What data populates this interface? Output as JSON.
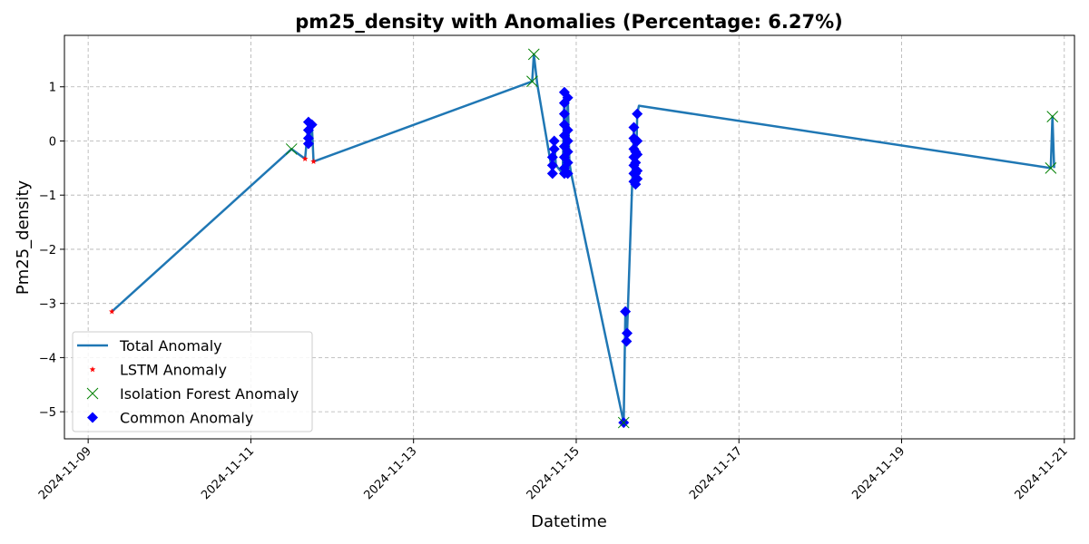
{
  "chart_data": {
    "type": "line",
    "title": "pm25_density with Anomalies (Percentage: 6.27%)",
    "xlabel": "Datetime",
    "ylabel": "Pm25_density",
    "xlim": [
      "2024-11-08T17:00",
      "2024-11-21T03:00"
    ],
    "ylim": [
      -5.5,
      1.95
    ],
    "x_ticks": [
      "2024-11-09",
      "2024-11-11",
      "2024-11-13",
      "2024-11-15",
      "2024-11-17",
      "2024-11-19",
      "2024-11-21"
    ],
    "y_ticks": [
      1,
      0,
      -1,
      -2,
      -3,
      -4,
      -5
    ],
    "y_tick_labels": [
      "1",
      "0",
      "−1",
      "−2",
      "−3",
      "−4",
      "−5"
    ],
    "grid": true,
    "legend_position": "lower-left",
    "colors": {
      "line": "#1f77b4",
      "lstm": "#ff0000",
      "iforest": "#008000",
      "common": "#0000ff"
    },
    "series": [
      {
        "name": "Total Anomaly",
        "kind": "line",
        "points": [
          [
            "2024-11-09T07:00",
            -3.15
          ],
          [
            "2024-11-11T12:00",
            -0.15
          ],
          [
            "2024-11-11T16:00",
            -0.33
          ],
          [
            "2024-11-11T17:00",
            0.35
          ],
          [
            "2024-11-11T17:30",
            0.05
          ],
          [
            "2024-11-11T18:00",
            0.3
          ],
          [
            "2024-11-11T18:30",
            -0.38
          ],
          [
            "2024-11-14T11:00",
            1.1
          ],
          [
            "2024-11-14T11:30",
            1.6
          ],
          [
            "2024-11-14T12:30",
            1.05
          ],
          [
            "2024-11-14T17:00",
            -0.6
          ],
          [
            "2024-11-14T17:30",
            0.0
          ],
          [
            "2024-11-14T18:00",
            -0.45
          ],
          [
            "2024-11-14T20:00",
            -0.6
          ],
          [
            "2024-11-14T20:30",
            0.9
          ],
          [
            "2024-11-14T21:00",
            -0.6
          ],
          [
            "2024-11-14T21:30",
            0.8
          ],
          [
            "2024-11-14T22:00",
            -0.4
          ],
          [
            "2024-11-14T22:30",
            -0.6
          ],
          [
            "2024-11-15T14:00",
            -5.2
          ],
          [
            "2024-11-15T14:30",
            -3.15
          ],
          [
            "2024-11-15T14:50",
            -3.7
          ],
          [
            "2024-11-15T15:00",
            -3.55
          ],
          [
            "2024-11-15T16:30",
            -0.8
          ],
          [
            "2024-11-15T17:00",
            0.25
          ],
          [
            "2024-11-15T17:30",
            -0.8
          ],
          [
            "2024-11-15T18:00",
            0.5
          ],
          [
            "2024-11-15T18:30",
            0.65
          ],
          [
            "2024-11-20T20:00",
            -0.5
          ],
          [
            "2024-11-20T20:30",
            0.45
          ],
          [
            "2024-11-20T21:00",
            -0.5
          ]
        ]
      },
      {
        "name": "LSTM Anomaly",
        "kind": "scatter",
        "marker": "star",
        "points": [
          [
            "2024-11-09T07:00",
            -3.15
          ],
          [
            "2024-11-11T16:00",
            -0.33
          ],
          [
            "2024-11-11T18:30",
            -0.38
          ]
        ]
      },
      {
        "name": "Isolation Forest Anomaly",
        "kind": "scatter",
        "marker": "x",
        "points": [
          [
            "2024-11-11T12:00",
            -0.15
          ],
          [
            "2024-11-14T11:00",
            1.1
          ],
          [
            "2024-11-14T11:30",
            1.6
          ],
          [
            "2024-11-15T14:00",
            -5.2
          ],
          [
            "2024-11-20T20:00",
            -0.5
          ],
          [
            "2024-11-20T20:30",
            0.45
          ]
        ]
      },
      {
        "name": "Common Anomaly",
        "kind": "scatter",
        "marker": "diamond",
        "points": [
          [
            "2024-11-11T17:00",
            0.35
          ],
          [
            "2024-11-11T17:00",
            0.2
          ],
          [
            "2024-11-11T17:00",
            0.05
          ],
          [
            "2024-11-11T17:00",
            -0.05
          ],
          [
            "2024-11-11T18:00",
            0.3
          ],
          [
            "2024-11-14T17:00",
            -0.6
          ],
          [
            "2024-11-14T17:00",
            -0.45
          ],
          [
            "2024-11-14T17:00",
            -0.3
          ],
          [
            "2024-11-14T17:30",
            0.0
          ],
          [
            "2024-11-14T17:30",
            -0.15
          ],
          [
            "2024-11-14T20:30",
            0.9
          ],
          [
            "2024-11-14T20:30",
            0.7
          ],
          [
            "2024-11-14T20:30",
            0.5
          ],
          [
            "2024-11-14T20:30",
            0.3
          ],
          [
            "2024-11-14T20:30",
            0.1
          ],
          [
            "2024-11-14T20:30",
            -0.1
          ],
          [
            "2024-11-14T20:30",
            -0.3
          ],
          [
            "2024-11-14T20:30",
            -0.5
          ],
          [
            "2024-11-14T20:30",
            -0.6
          ],
          [
            "2024-11-14T21:30",
            0.8
          ],
          [
            "2024-11-14T21:30",
            0.2
          ],
          [
            "2024-11-14T21:30",
            0.0
          ],
          [
            "2024-11-14T21:30",
            -0.2
          ],
          [
            "2024-11-14T21:30",
            -0.4
          ],
          [
            "2024-11-14T21:30",
            -0.6
          ],
          [
            "2024-11-15T14:00",
            -5.2
          ],
          [
            "2024-11-15T14:30",
            -3.15
          ],
          [
            "2024-11-15T14:50",
            -3.7
          ],
          [
            "2024-11-15T15:00",
            -3.55
          ],
          [
            "2024-11-15T17:00",
            0.25
          ],
          [
            "2024-11-15T17:00",
            0.05
          ],
          [
            "2024-11-15T17:00",
            -0.15
          ],
          [
            "2024-11-15T17:00",
            -0.3
          ],
          [
            "2024-11-15T17:00",
            -0.45
          ],
          [
            "2024-11-15T17:00",
            -0.6
          ],
          [
            "2024-11-15T17:00",
            -0.75
          ],
          [
            "2024-11-15T17:30",
            0.0
          ],
          [
            "2024-11-15T17:30",
            -0.2
          ],
          [
            "2024-11-15T17:30",
            -0.4
          ],
          [
            "2024-11-15T17:30",
            -0.6
          ],
          [
            "2024-11-15T17:30",
            -0.8
          ],
          [
            "2024-11-15T18:00",
            0.5
          ],
          [
            "2024-11-15T18:00",
            0.0
          ],
          [
            "2024-11-15T18:00",
            -0.25
          ],
          [
            "2024-11-15T18:00",
            -0.55
          ],
          [
            "2024-11-15T18:00",
            -0.7
          ]
        ]
      }
    ]
  }
}
